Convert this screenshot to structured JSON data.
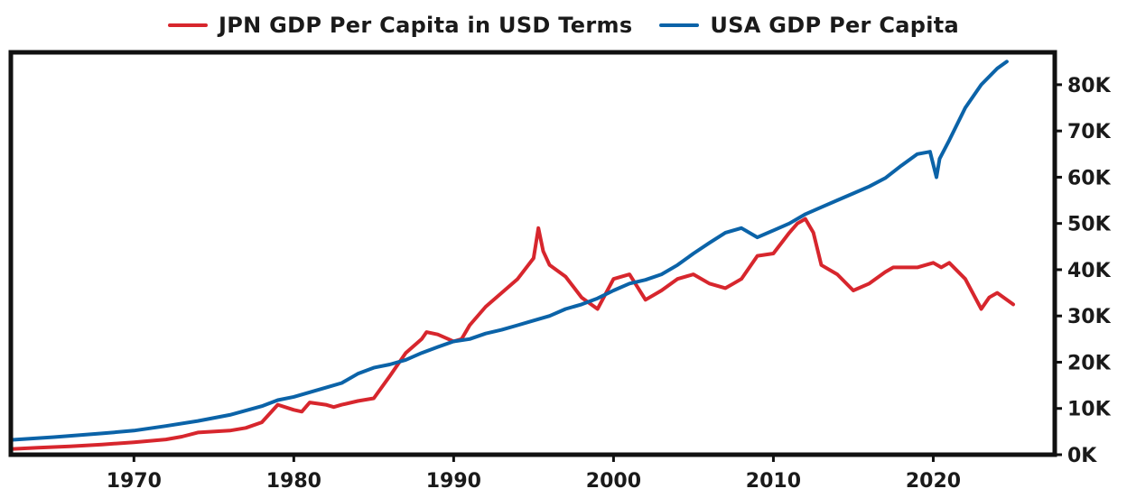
{
  "chart_data": {
    "type": "line",
    "title": "",
    "xlabel": "",
    "ylabel": "",
    "xlim": [
      1962.3,
      2027.6
    ],
    "ylim": [
      0,
      87000
    ],
    "x_ticks": [
      1970,
      1980,
      1990,
      2000,
      2010,
      2020
    ],
    "y_ticks": [
      {
        "value": 0,
        "label": "0K"
      },
      {
        "value": 10000,
        "label": "10K"
      },
      {
        "value": 20000,
        "label": "20K"
      },
      {
        "value": 30000,
        "label": "30K"
      },
      {
        "value": 40000,
        "label": "40K"
      },
      {
        "value": 50000,
        "label": "50K"
      },
      {
        "value": 60000,
        "label": "60K"
      },
      {
        "value": 70000,
        "label": "70K"
      },
      {
        "value": 80000,
        "label": "80K"
      }
    ],
    "y_axis_side": "right",
    "grid": false,
    "legend_position": "top-center",
    "series": [
      {
        "name": "JPN GDP Per Capita in USD Terms",
        "color": "#d7262d",
        "x": [
          1962.3,
          1964,
          1966,
          1968,
          1970,
          1972,
          1973,
          1974,
          1976,
          1977,
          1978,
          1979,
          1980,
          1980.5,
          1981,
          1982,
          1982.5,
          1983,
          1984,
          1985,
          1986,
          1987,
          1988,
          1988.3,
          1989,
          1990,
          1990.5,
          1991,
          1992,
          1993,
          1994,
          1995,
          1995.3,
          1995.6,
          1996,
          1997,
          1998,
          1999,
          2000,
          2001,
          2002,
          2003,
          2004,
          2005,
          2006,
          2007,
          2007.5,
          2008,
          2009,
          2010,
          2011,
          2011.5,
          2012,
          2012.5,
          2013,
          2014,
          2015,
          2016,
          2017,
          2017.5,
          2018,
          2019,
          2020,
          2020.5,
          2021,
          2022,
          2023,
          2023.5,
          2024,
          2025
        ],
        "y": [
          1200,
          1500,
          1800,
          2200,
          2700,
          3300,
          3900,
          4800,
          5200,
          5800,
          7000,
          10800,
          9700,
          9300,
          11300,
          10800,
          10300,
          10800,
          11600,
          12200,
          17000,
          22000,
          25000,
          26500,
          26000,
          24500,
          25000,
          28000,
          32000,
          35000,
          38000,
          42500,
          49000,
          44000,
          41000,
          38500,
          34000,
          31500,
          38000,
          39000,
          33500,
          35500,
          38000,
          39000,
          37000,
          36000,
          37000,
          38000,
          43000,
          43500,
          48000,
          50000,
          51000,
          48000,
          41000,
          39000,
          35500,
          37000,
          39500,
          40500,
          40500,
          40500,
          41500,
          40500,
          41500,
          38000,
          31500,
          34000,
          35000,
          32500
        ]
      },
      {
        "name": "USA GDP Per Capita",
        "color": "#0b63a8",
        "x": [
          1962.3,
          1965,
          1968,
          1970,
          1972,
          1974,
          1976,
          1978,
          1979,
          1980,
          1981,
          1982,
          1983,
          1984,
          1985,
          1986,
          1987,
          1988,
          1989,
          1990,
          1991,
          1992,
          1993,
          1994,
          1995,
          1996,
          1997,
          1998,
          1999,
          2000,
          2001,
          2002,
          2003,
          2004,
          2005,
          2006,
          2007,
          2008,
          2009,
          2010,
          2011,
          2012,
          2013,
          2014,
          2015,
          2016,
          2017,
          2018,
          2019,
          2019.8,
          2020.2,
          2020.4,
          2021,
          2022,
          2023,
          2024,
          2024.6
        ],
        "y": [
          3200,
          3800,
          4600,
          5200,
          6200,
          7300,
          8600,
          10500,
          11800,
          12500,
          13500,
          14500,
          15500,
          17500,
          18800,
          19500,
          20500,
          22000,
          23300,
          24500,
          25000,
          26200,
          27000,
          28000,
          29000,
          30000,
          31500,
          32500,
          33800,
          35500,
          37000,
          37800,
          39000,
          41000,
          43500,
          45800,
          48000,
          49000,
          47000,
          48500,
          50000,
          52000,
          53500,
          55000,
          56500,
          58000,
          59800,
          62500,
          65000,
          65500,
          60000,
          64000,
          68000,
          75000,
          80000,
          83500,
          85000
        ]
      }
    ]
  }
}
